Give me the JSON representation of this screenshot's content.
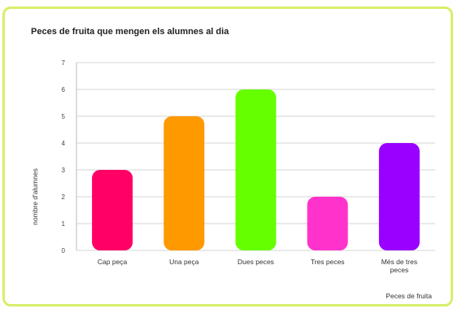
{
  "chart_data": {
    "type": "bar",
    "title": "Peces de fruita que mengen els alumnes al dia",
    "xlabel": "Peces de fruita",
    "ylabel": "nombre d'alumnes",
    "categories": [
      "Cap peça",
      "Una peça",
      "Dues peces",
      "Tres peces",
      "Més de tres peces"
    ],
    "category_lines": [
      [
        "Cap peça"
      ],
      [
        "Una peça"
      ],
      [
        "Dues peces"
      ],
      [
        "Tres peces"
      ],
      [
        "Més de tres",
        "peces"
      ]
    ],
    "values": [
      3,
      5,
      6,
      2,
      4
    ],
    "colors": [
      "#ff0066",
      "#ff9900",
      "#66ff00",
      "#ff33cc",
      "#9900ff"
    ],
    "ylim": [
      0,
      7
    ],
    "yticks": [
      0,
      1,
      2,
      3,
      4,
      5,
      6,
      7
    ],
    "grid": true,
    "legend": "none"
  }
}
